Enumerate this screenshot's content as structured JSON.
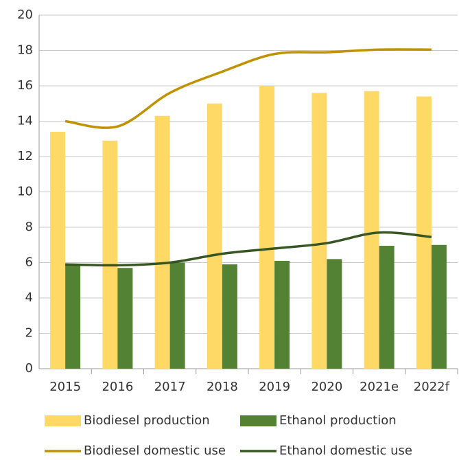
{
  "chart_data": {
    "type": "bar",
    "categories": [
      "2015",
      "2016",
      "2017",
      "2018",
      "2019",
      "2020",
      "2021e",
      "2022f"
    ],
    "series": [
      {
        "name": "Biodiesel production",
        "type": "bar",
        "color": "#ffd966",
        "values": [
          13.4,
          12.9,
          14.3,
          15.0,
          16.0,
          15.6,
          15.7,
          15.4
        ]
      },
      {
        "name": "Ethanol production",
        "type": "bar",
        "color": "#548235",
        "values": [
          5.9,
          5.7,
          6.0,
          5.9,
          6.1,
          6.2,
          6.95,
          7.0
        ]
      },
      {
        "name": "Biodiesel domestic use",
        "type": "line",
        "color": "#c09200",
        "values": [
          14.0,
          13.7,
          15.6,
          16.8,
          17.8,
          17.9,
          18.05,
          18.05
        ]
      },
      {
        "name": "Ethanol domestic use",
        "type": "line",
        "color": "#375623",
        "values": [
          5.9,
          5.85,
          6.0,
          6.5,
          6.8,
          7.1,
          7.7,
          7.45
        ]
      }
    ],
    "ylim": [
      0,
      20
    ],
    "yticks": [
      0,
      2,
      4,
      6,
      8,
      10,
      12,
      14,
      16,
      18,
      20
    ],
    "grid": true
  }
}
